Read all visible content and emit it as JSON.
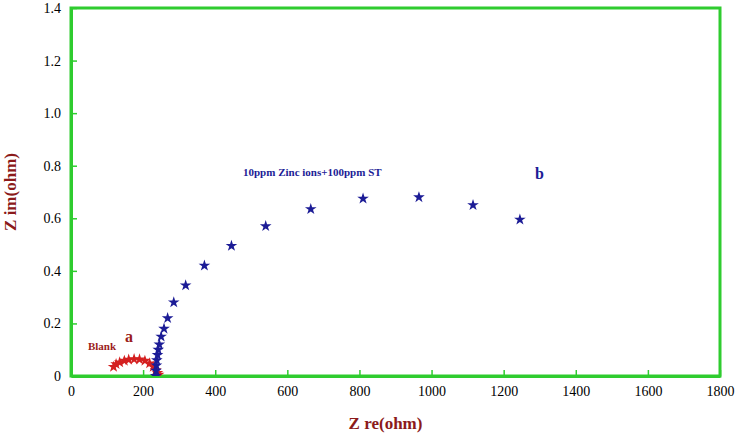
{
  "chart_data": {
    "type": "scatter",
    "x_label": "Z re(ohm)",
    "y_label": "Z im(ohm)",
    "xlim": [
      0,
      1800
    ],
    "ylim": [
      0,
      1.4
    ],
    "xticks": [
      0,
      200,
      400,
      600,
      800,
      1000,
      1200,
      1400,
      1600,
      1800
    ],
    "yticks": [
      0,
      0.2,
      0.4,
      0.6,
      0.8,
      {
        "value": 1,
        "label": "1.0"
      },
      1.2,
      1.4
    ],
    "grid": false,
    "series": [
      {
        "color": "#d42020",
        "marker": "star",
        "x": [
          118,
          125,
          135,
          148,
          160,
          175,
          190,
          205,
          218,
          228,
          235,
          240,
          243
        ],
        "values": [
          0.035,
          0.045,
          0.052,
          0.058,
          0.062,
          0.064,
          0.063,
          0.058,
          0.048,
          0.035,
          0.022,
          0.012,
          0.005
        ]
      },
      {
        "color": "#1c1c96",
        "marker": "star",
        "x": [
          235,
          236,
          237,
          238,
          240,
          242,
          245,
          250,
          258,
          268,
          285,
          318,
          370,
          445,
          540,
          665,
          810,
          965,
          1115,
          1245
        ],
        "values": [
          0.0,
          0.02,
          0.04,
          0.06,
          0.08,
          0.1,
          0.12,
          0.15,
          0.18,
          0.22,
          0.28,
          0.345,
          0.42,
          0.495,
          0.57,
          0.635,
          0.675,
          0.68,
          0.65,
          0.595
        ]
      }
    ],
    "annotations": [
      {
        "text": "Blank",
        "x": 47,
        "y": 0.1,
        "color": "#9b1c1c"
      },
      {
        "text": "a",
        "x": 150,
        "y": 0.13,
        "color": "#9b1c1c"
      },
      {
        "text": "10ppm Zinc ions+100ppm ST",
        "x": 477,
        "y": 0.76,
        "color": "#1c1c96"
      },
      {
        "text": "b",
        "x": 1287,
        "y": 0.75,
        "color": "#1c1c96"
      }
    ]
  }
}
